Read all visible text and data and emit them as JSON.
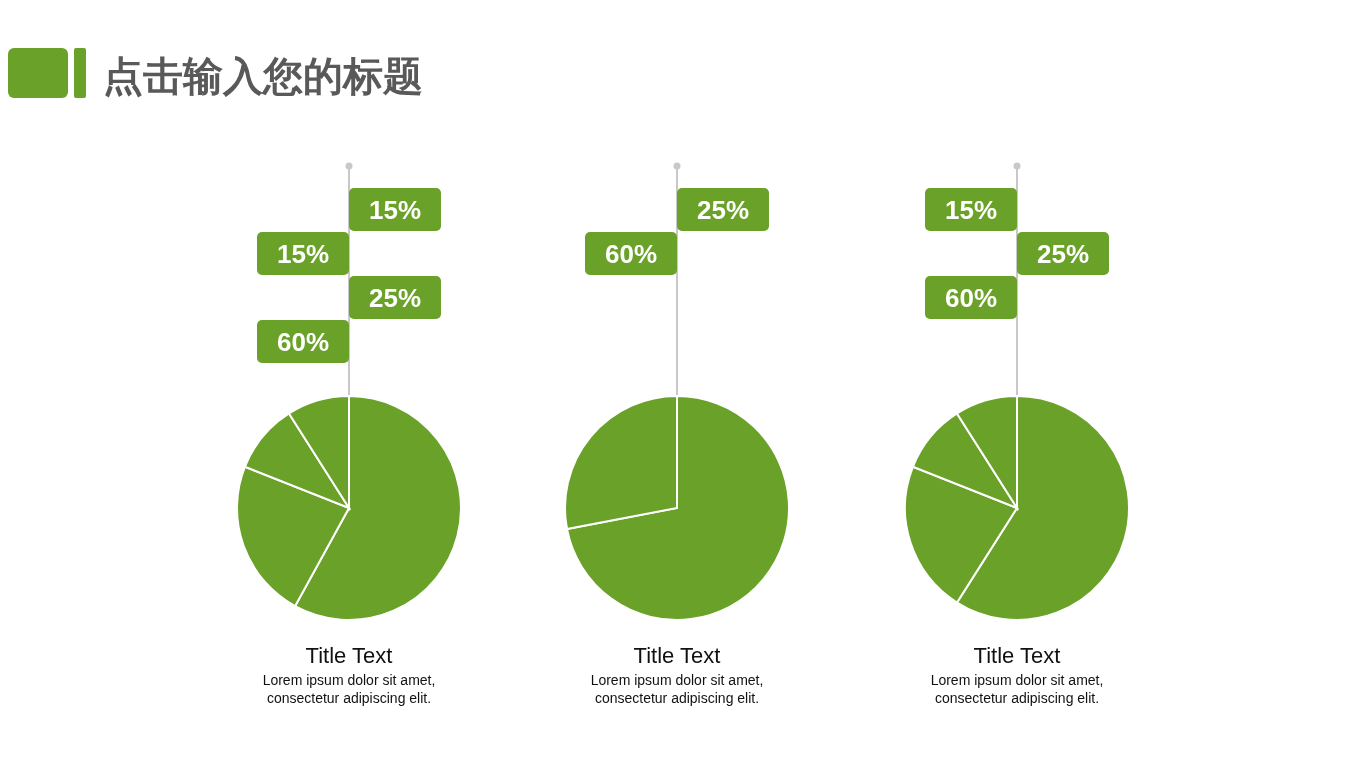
{
  "chart_data": [
    {
      "type": "other",
      "title": "点击输入您的标题"
    },
    {
      "type": "pie",
      "title": "Title Text",
      "annotations": [
        "Lorem ipsum dolor sit amet, consectetur adipiscing elit.",
        "15%",
        "15%",
        "25%",
        "60%"
      ],
      "categories": [
        null,
        null,
        null,
        null
      ],
      "values": [
        58,
        23,
        10,
        9
      ],
      "colors": [
        "#6aa128",
        "#6aa128",
        "#6aa128",
        "#6aa128"
      ]
    },
    {
      "type": "pie",
      "title": "Title Text",
      "annotations": [
        "Lorem ipsum dolor sit amet, consectetur adipiscing elit.",
        "25%",
        "60%"
      ],
      "categories": [
        null,
        null
      ],
      "values": [
        72,
        28
      ],
      "colors": [
        "#6aa128",
        "#6aa128"
      ]
    },
    {
      "type": "pie",
      "title": "Title Text",
      "annotations": [
        "Lorem ipsum dolor sit amet, consectetur adipiscing elit.",
        "15%",
        "25%",
        "60%"
      ],
      "categories": [
        null,
        null,
        null,
        null
      ],
      "values": [
        59,
        22,
        10,
        9
      ],
      "colors": [
        "#6aa128",
        "#6aa128",
        "#6aa128",
        "#6aa128"
      ]
    }
  ]
}
